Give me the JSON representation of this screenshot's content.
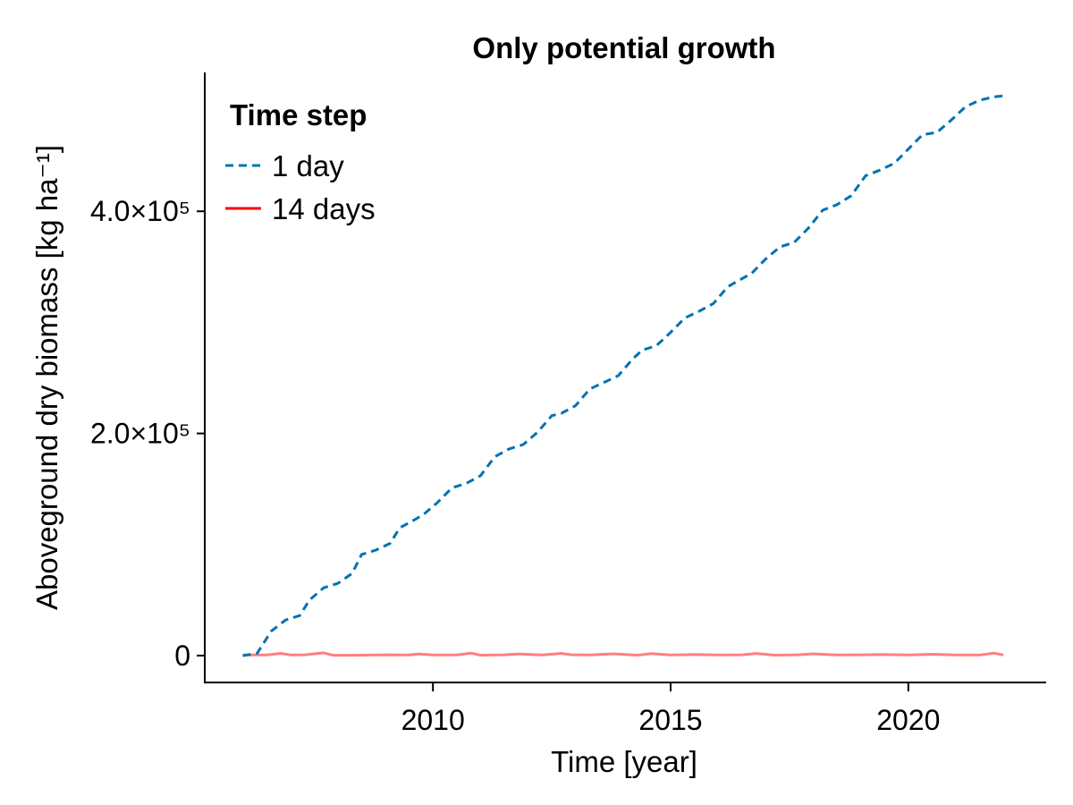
{
  "chart_data": {
    "type": "line",
    "title": "Only potential growth",
    "xlabel": "Time [year]",
    "ylabel": "Aboveground dry biomass [kg ha⁻¹]",
    "xlim": [
      2005.2,
      2022.9
    ],
    "ylim": [
      -25000,
      525000
    ],
    "x_ticks": [
      {
        "value": 2010,
        "label": "2010"
      },
      {
        "value": 2015,
        "label": "2015"
      },
      {
        "value": 2020,
        "label": "2020"
      }
    ],
    "y_ticks": [
      {
        "value": 0,
        "label": "0"
      },
      {
        "value": 200000,
        "label": "2.0×10⁵"
      },
      {
        "value": 400000,
        "label": "4.0×10⁵"
      }
    ],
    "grid": false,
    "legend": {
      "title": "Time step",
      "position": "top-left",
      "entries": [
        "1 day",
        "14 days"
      ]
    },
    "series": [
      {
        "name": "1 day",
        "color": "#0072b2",
        "style": "dashed",
        "x": [
          2006.0,
          2006.3,
          2006.6,
          2006.9,
          2007.2,
          2007.4,
          2007.7,
          2008.0,
          2008.3,
          2008.5,
          2008.8,
          2009.1,
          2009.3,
          2009.6,
          2009.8,
          2010.1,
          2010.4,
          2010.7,
          2011.0,
          2011.3,
          2011.6,
          2011.9,
          2012.2,
          2012.5,
          2012.7,
          2013.0,
          2013.3,
          2013.6,
          2013.9,
          2014.2,
          2014.4,
          2014.7,
          2015.0,
          2015.3,
          2015.6,
          2015.9,
          2016.2,
          2016.4,
          2016.7,
          2017.0,
          2017.3,
          2017.6,
          2017.9,
          2018.2,
          2018.5,
          2018.8,
          2019.1,
          2019.4,
          2019.7,
          2020.0,
          2020.3,
          2020.6,
          2020.9,
          2021.2,
          2021.5,
          2021.8,
          2022.0
        ],
        "y": [
          0,
          2000,
          22000,
          32000,
          36000,
          50000,
          61000,
          65000,
          74000,
          91000,
          95000,
          101000,
          115000,
          122000,
          127000,
          138000,
          151000,
          155000,
          162000,
          179000,
          186000,
          190000,
          201000,
          216000,
          218000,
          225000,
          240000,
          246000,
          252000,
          267000,
          275000,
          279000,
          291000,
          304000,
          310000,
          317000,
          332000,
          337000,
          344000,
          357000,
          368000,
          372000,
          385000,
          401000,
          406000,
          414000,
          432000,
          437000,
          443000,
          456000,
          469000,
          471000,
          482000,
          494000,
          500000,
          503000,
          504000
        ]
      },
      {
        "name": "14 days",
        "color": "#ff0000",
        "style": "solid",
        "x": [
          2006.0,
          2006.5,
          2006.8,
          2007.0,
          2007.3,
          2007.7,
          2007.9,
          2008.5,
          2009.0,
          2009.5,
          2009.7,
          2010.0,
          2010.5,
          2010.8,
          2011.0,
          2011.5,
          2011.8,
          2012.3,
          2012.7,
          2012.9,
          2013.3,
          2013.8,
          2014.3,
          2014.6,
          2015.0,
          2015.5,
          2016.0,
          2016.5,
          2016.8,
          2017.2,
          2017.7,
          2018.0,
          2018.5,
          2019.0,
          2019.5,
          2020.0,
          2020.5,
          2021.0,
          2021.5,
          2021.8,
          2022.0
        ],
        "y": [
          600,
          500,
          2000,
          600,
          700,
          2500,
          300,
          400,
          700,
          500,
          1500,
          500,
          600,
          2200,
          400,
          700,
          1500,
          500,
          2000,
          800,
          600,
          1600,
          400,
          1800,
          500,
          900,
          500,
          700,
          1900,
          400,
          800,
          1600,
          500,
          700,
          900,
          500,
          1200,
          600,
          500,
          2200,
          500
        ]
      }
    ]
  }
}
